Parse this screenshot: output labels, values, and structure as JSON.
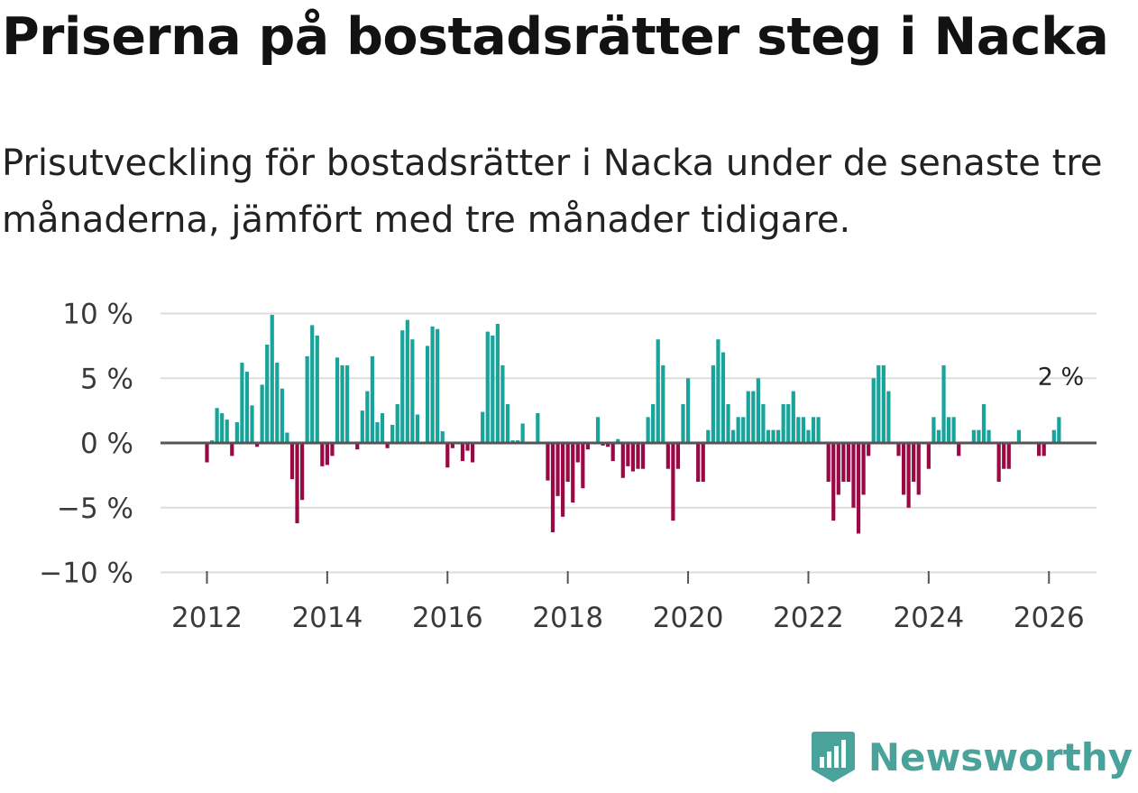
{
  "title": "Priserna på bostadsrätter steg i Nacka",
  "subtitle": "Prisutveckling för bostadsrätter i Nacka under de senaste tre månaderna, jämfört med tre månader tidigare.",
  "brand": {
    "name": "Newsworthy"
  },
  "colors": {
    "positive": "#18a39b",
    "negative": "#9b0846",
    "grid": "#dddddd",
    "zero": "#555555",
    "brand": "#4aa39b"
  },
  "chart_data": {
    "type": "bar",
    "title": "",
    "xlabel": "",
    "ylabel": "",
    "start": "2012-01",
    "frequency": "monthly",
    "ylim": [
      -10,
      10
    ],
    "yticks": [
      {
        "value": 10,
        "label": "10 %"
      },
      {
        "value": 5,
        "label": "5 %"
      },
      {
        "value": 0,
        "label": "0 %"
      },
      {
        "value": -5,
        "label": "−5 %"
      },
      {
        "value": -10,
        "label": "−10 %"
      }
    ],
    "xticks": [
      "2012",
      "2014",
      "2016",
      "2018",
      "2020",
      "2022",
      "2024",
      "2026"
    ],
    "end_label": "2 %",
    "values": [
      -1.5,
      0.2,
      2.7,
      2.3,
      1.8,
      -1.0,
      1.6,
      6.2,
      5.5,
      2.9,
      -0.3,
      4.5,
      7.6,
      9.9,
      6.2,
      4.2,
      0.8,
      -2.8,
      -6.2,
      -4.4,
      6.7,
      9.1,
      8.3,
      -1.8,
      -1.7,
      -1.0,
      6.6,
      6.0,
      6.0,
      0.0,
      -0.5,
      2.5,
      4.0,
      6.7,
      1.6,
      2.3,
      -0.4,
      1.4,
      3.0,
      8.7,
      9.5,
      8.0,
      2.2,
      0.0,
      7.5,
      9.0,
      8.8,
      0.9,
      -1.9,
      -0.4,
      0.0,
      -1.4,
      -0.6,
      -1.5,
      0.0,
      2.4,
      8.6,
      8.3,
      9.2,
      6.0,
      3.0,
      0.2,
      0.2,
      1.5,
      0.0,
      0.0,
      2.3,
      0.0,
      -2.9,
      -6.9,
      -4.1,
      -5.7,
      -3.0,
      -4.6,
      -1.5,
      -3.5,
      -0.5,
      0.0,
      2.0,
      -0.2,
      -0.3,
      -1.4,
      0.3,
      -2.7,
      -1.8,
      -2.2,
      -2.0,
      -2.0,
      2.0,
      3.0,
      8.0,
      6.0,
      -2.0,
      -6.0,
      -2.0,
      3.0,
      5.0,
      0.0,
      -3.0,
      -3.0,
      1.0,
      6.0,
      8.0,
      7.0,
      3.0,
      1.0,
      2.0,
      2.0,
      4.0,
      4.0,
      5.0,
      3.0,
      1.0,
      1.0,
      1.0,
      3.0,
      3.0,
      4.0,
      2.0,
      2.0,
      1.0,
      2.0,
      2.0,
      0.0,
      -3.0,
      -6.0,
      -4.0,
      -3.0,
      -3.0,
      -5.0,
      -7.0,
      -4.0,
      -1.0,
      5.0,
      6.0,
      6.0,
      4.0,
      0.0,
      -1.0,
      -4.0,
      -5.0,
      -3.0,
      -4.0,
      0.0,
      -2.0,
      2.0,
      1.0,
      6.0,
      2.0,
      2.0,
      -1.0,
      0.0,
      0.0,
      1.0,
      1.0,
      3.0,
      1.0,
      0.0,
      -3.0,
      -2.0,
      -2.0,
      0.0,
      1.0,
      0.0,
      0.0,
      0.0,
      -1.0,
      -1.0,
      0.0,
      1.0,
      2.0
    ]
  }
}
